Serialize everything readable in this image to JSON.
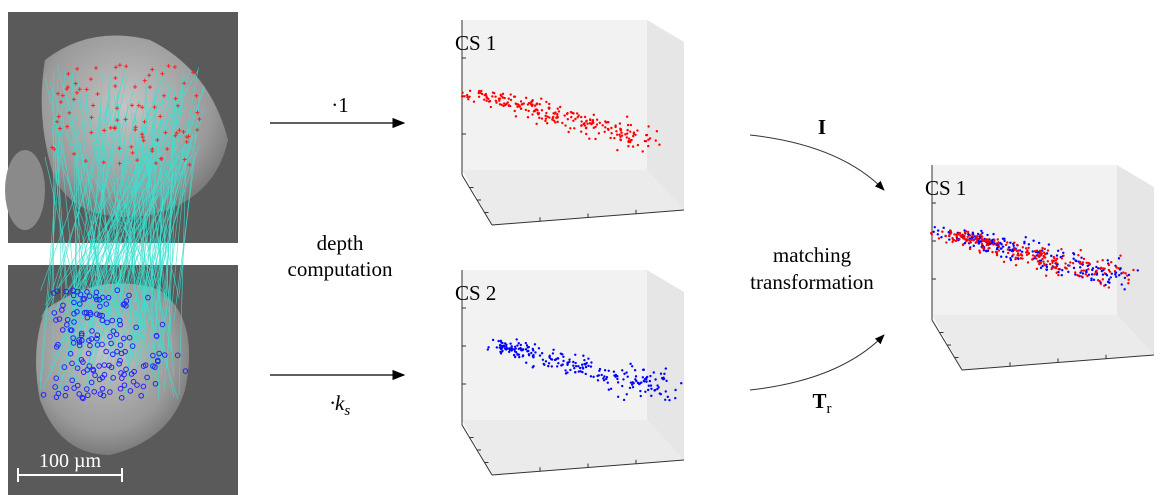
{
  "scale_bar": "100 µm",
  "arrow_top": "·1",
  "arrow_bottom": {
    "base": "·k",
    "sub": "s"
  },
  "depth_label": [
    "depth",
    "computation"
  ],
  "cs_top": "CS 1",
  "cs_bottom": "CS 2",
  "identity": "I",
  "transform": {
    "base": "T",
    "sub": "r"
  },
  "matching_label": [
    "matching",
    "transformation"
  ],
  "cs_result": "CS 1"
}
